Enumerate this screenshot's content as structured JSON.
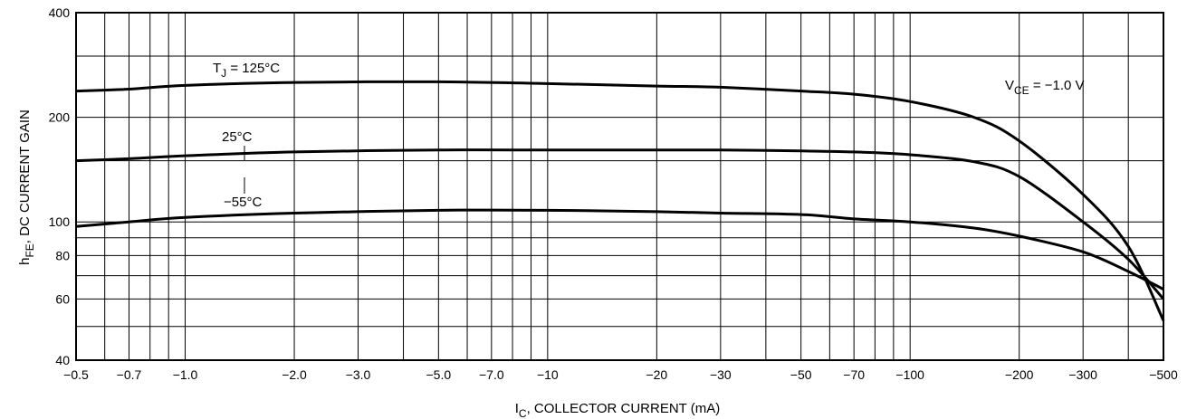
{
  "chart_data": {
    "type": "line",
    "title": "",
    "xlabel": "I",
    "xlabel_sub": "C",
    "xlabel_rest": ", COLLECTOR CURRENT (mA)",
    "ylabel": "h",
    "ylabel_sub": "FE",
    "ylabel_rest": ", DC CURRENT GAIN",
    "x_scale": "log",
    "y_scale": "log",
    "xlim": [
      0.5,
      500
    ],
    "ylim": [
      40,
      400
    ],
    "grid": true,
    "x_ticks": [
      {
        "value": 0.5,
        "label": "−0.5"
      },
      {
        "value": 0.7,
        "label": "−0.7"
      },
      {
        "value": 1.0,
        "label": "−1.0"
      },
      {
        "value": 2.0,
        "label": "−2.0"
      },
      {
        "value": 3.0,
        "label": "−3.0"
      },
      {
        "value": 5.0,
        "label": "−5.0"
      },
      {
        "value": 7.0,
        "label": "−7.0"
      },
      {
        "value": 10,
        "label": "−10"
      },
      {
        "value": 20,
        "label": "−20"
      },
      {
        "value": 30,
        "label": "−30"
      },
      {
        "value": 50,
        "label": "−50"
      },
      {
        "value": 70,
        "label": "−70"
      },
      {
        "value": 100,
        "label": "−100"
      },
      {
        "value": 200,
        "label": "−200"
      },
      {
        "value": 300,
        "label": "−300"
      },
      {
        "value": 500,
        "label": "−500"
      }
    ],
    "x_minor_grid": [
      0.6,
      0.8,
      0.9,
      4,
      6,
      8,
      9,
      40,
      60,
      80,
      90,
      400
    ],
    "y_ticks": [
      {
        "value": 40,
        "label": "40"
      },
      {
        "value": 60,
        "label": "60"
      },
      {
        "value": 80,
        "label": "80"
      },
      {
        "value": 100,
        "label": "100"
      },
      {
        "value": 200,
        "label": "200"
      },
      {
        "value": 400,
        "label": "400"
      }
    ],
    "y_minor_grid": [
      50,
      70,
      90,
      150,
      300
    ],
    "series": [
      {
        "name": "T",
        "name_sub": "J",
        "name_rest": " = 125°C",
        "x": [
          0.5,
          0.7,
          1.0,
          2.0,
          5.0,
          10,
          20,
          30,
          50,
          70,
          100,
          150,
          200,
          300,
          400,
          500
        ],
        "y": [
          238,
          241,
          247,
          252,
          253,
          250,
          246,
          244,
          238,
          233,
          222,
          200,
          171,
          120,
          85,
          52
        ]
      },
      {
        "name": "25°C",
        "x": [
          0.5,
          0.7,
          1.0,
          2.0,
          5.0,
          10,
          20,
          30,
          50,
          70,
          100,
          150,
          200,
          300,
          400,
          500
        ],
        "y": [
          150,
          152,
          155,
          159,
          161,
          161,
          161,
          161,
          160,
          159,
          156,
          149,
          135,
          100,
          78,
          60
        ]
      },
      {
        "name": "−55°C",
        "x": [
          0.5,
          0.7,
          1.0,
          2.0,
          5.0,
          10,
          20,
          30,
          50,
          70,
          100,
          150,
          200,
          300,
          400,
          500
        ],
        "y": [
          97,
          100,
          103,
          106,
          108,
          108,
          107,
          106,
          105,
          102,
          100,
          96,
          91,
          82,
          72,
          64
        ]
      }
    ],
    "annotation": {
      "text": "V",
      "sub": "CE",
      "rest": " = −1.0 V"
    }
  }
}
